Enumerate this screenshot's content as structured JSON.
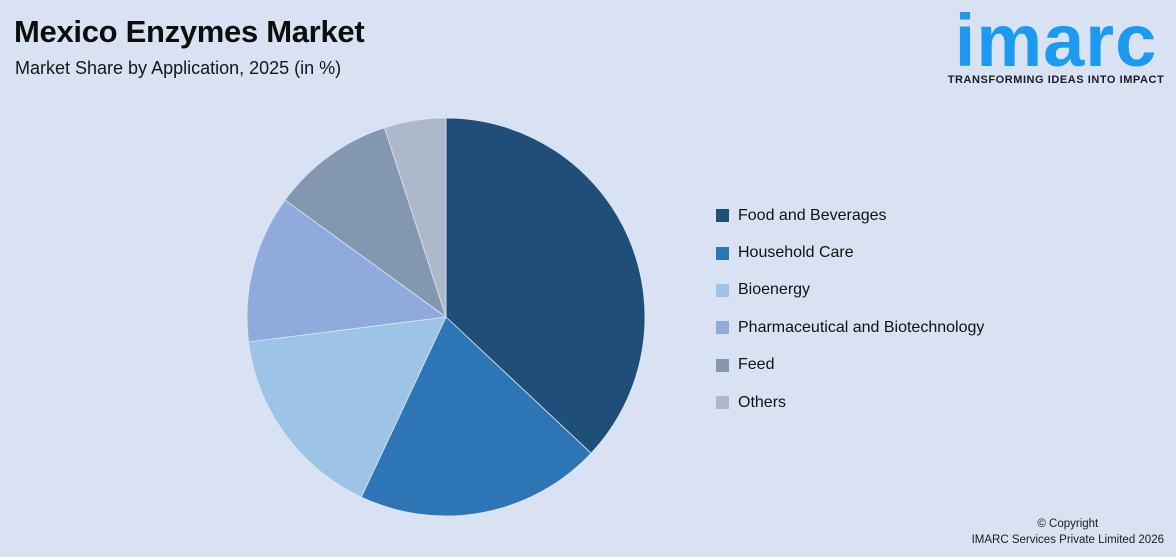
{
  "background_color": "#d9e2f3",
  "header": {
    "title": "Mexico Enzymes Market",
    "subtitle": "Market Share by Application, 2025 (in %)"
  },
  "logo": {
    "brand": "imarc",
    "brand_color": "#1b9af0",
    "tagline": "TRANSFORMING IDEAS INTO IMPACT"
  },
  "chart_data": {
    "type": "pie",
    "title": "Mexico Enzymes Market",
    "subtitle": "Market Share by Application, 2025 (in %)",
    "unit": "%",
    "start_angle_deg": 0,
    "direction": "clockwise",
    "legend_position": "right",
    "segments": [
      {
        "label": "Food and Beverages",
        "value": 37,
        "color": "#1f4e79"
      },
      {
        "label": "Household Care",
        "value": 20,
        "color": "#2e75b6"
      },
      {
        "label": "Bioenergy",
        "value": 16,
        "color": "#9dc3e6"
      },
      {
        "label": "Pharmaceutical and Biotechnology",
        "value": 12,
        "color": "#8faadc"
      },
      {
        "label": "Feed",
        "value": 10,
        "color": "#8497b0"
      },
      {
        "label": "Others",
        "value": 5,
        "color": "#adb9ca"
      }
    ]
  },
  "footer": {
    "copyright_line1": "© Copyright",
    "copyright_line2": "IMARC Services Private Limited 2026"
  }
}
